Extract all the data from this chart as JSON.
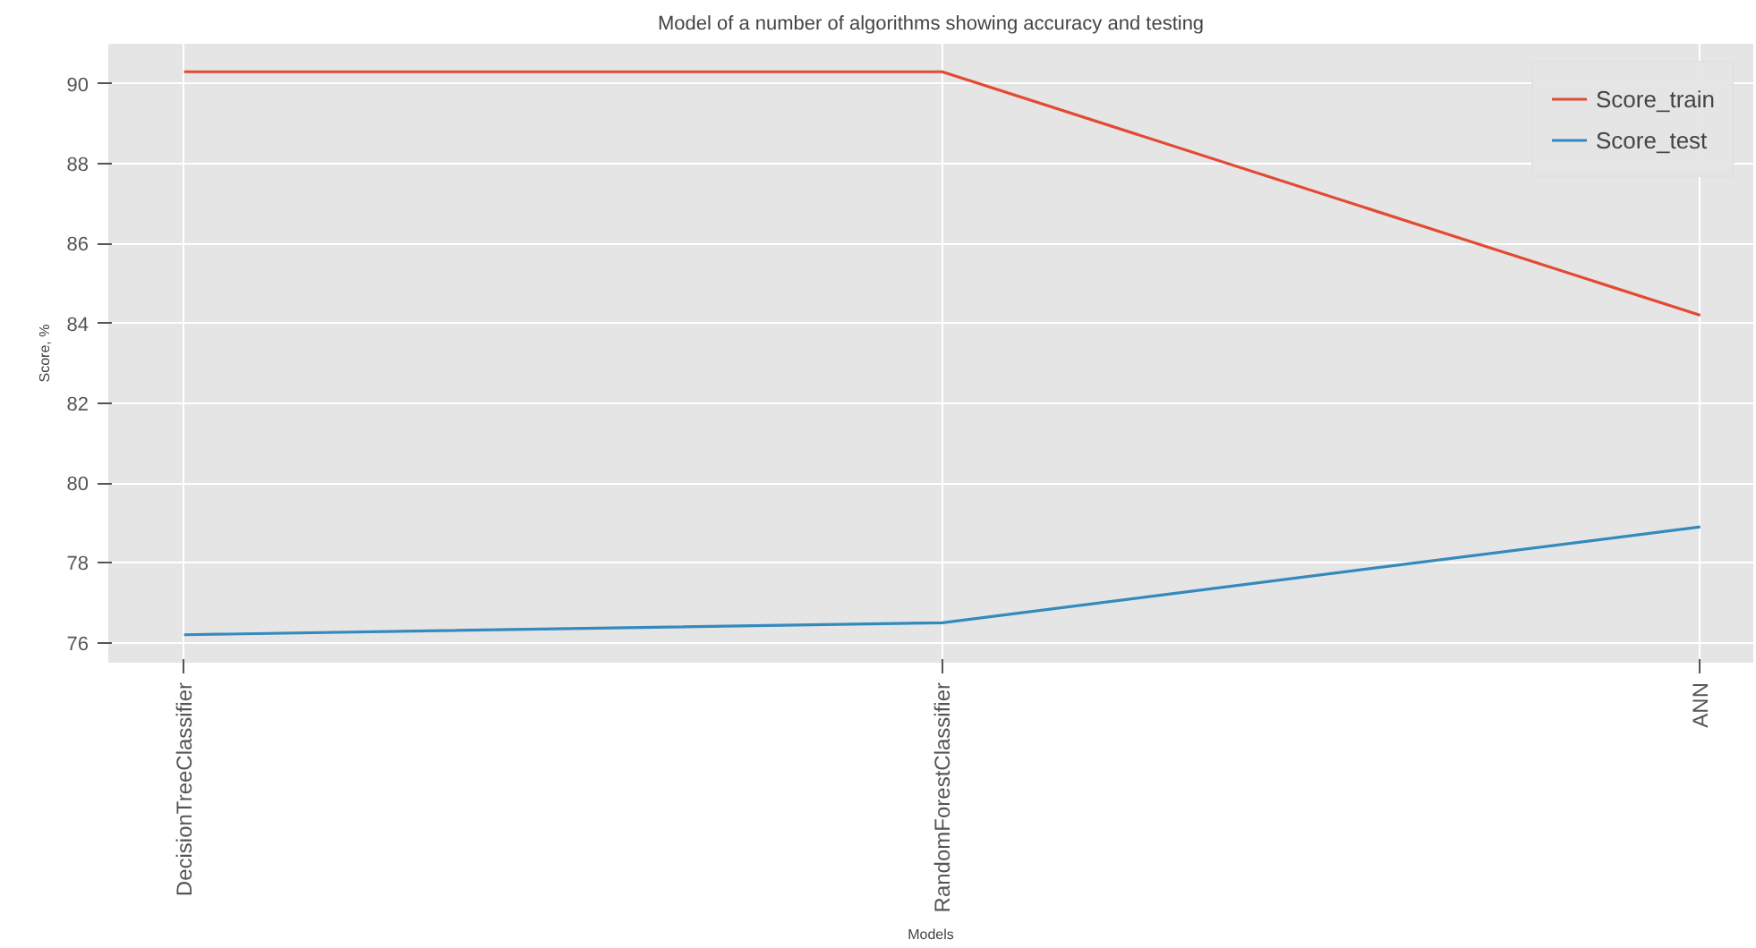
{
  "chart_data": {
    "type": "line",
    "title": "Model of a number of algorithms showing accuracy and testing",
    "xlabel": "Models",
    "ylabel": "Score, %",
    "categories": [
      "DecisionTreeClassifier",
      "RandomForestClassifier",
      "ANN"
    ],
    "series": [
      {
        "name": "Score_train",
        "color": "#e24a33",
        "values": [
          90.3,
          90.3,
          84.2
        ]
      },
      {
        "name": "Score_test",
        "color": "#348abd",
        "values": [
          76.2,
          76.5,
          78.9
        ]
      }
    ],
    "ylim": [
      75.5,
      91
    ],
    "yticks": [
      76,
      78,
      80,
      82,
      84,
      86,
      88,
      90
    ],
    "grid": true,
    "legend": "top right",
    "marker": "none",
    "line_style": "solid"
  }
}
